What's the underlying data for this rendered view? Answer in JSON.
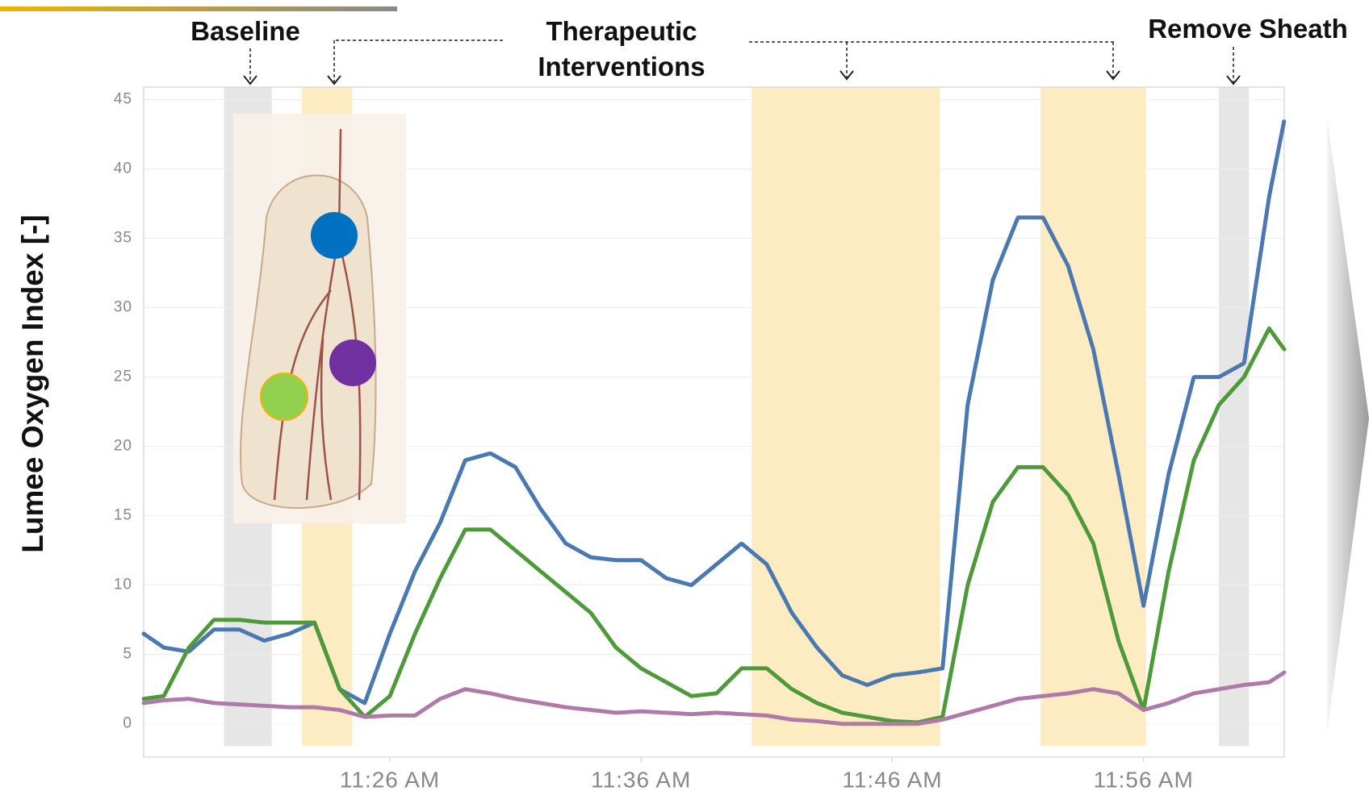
{
  "chart_data": {
    "type": "line",
    "ylabel": "Lumee Oxygen Index [-]",
    "annotations": [
      "Baseline",
      "Therapeutic Interventions",
      "Remove Sheath"
    ],
    "x": [
      676.2,
      677,
      678,
      679,
      680,
      681,
      682,
      683,
      684,
      685,
      686,
      687,
      688,
      689,
      690,
      691,
      692,
      693,
      694,
      695,
      696,
      697,
      698,
      699,
      700,
      701,
      702,
      703,
      704,
      705,
      706,
      707,
      708,
      709,
      710,
      711,
      712,
      713,
      714,
      715,
      716,
      717,
      718,
      719,
      720,
      721,
      721.6
    ],
    "series": [
      {
        "color": "#4a78b0",
        "values": [
          6.5,
          5.5,
          5.2,
          6.8,
          6.8,
          6.0,
          6.5,
          7.3,
          2.5,
          1.5,
          6.5,
          11,
          14.5,
          19,
          19.5,
          18.5,
          15.5,
          13,
          12,
          11.8,
          11.8,
          10.5,
          10,
          11.5,
          13,
          11.5,
          8,
          5.5,
          3.5,
          2.8,
          3.5,
          3.7,
          4,
          23,
          32,
          36.5,
          36.5,
          33,
          27,
          18,
          8.5,
          18,
          25,
          25,
          26,
          38,
          43.5
        ]
      },
      {
        "color": "#4e9a3a",
        "values": [
          1.8,
          2,
          5.5,
          7.5,
          7.5,
          7.3,
          7.3,
          7.3,
          2.5,
          0.5,
          2,
          6.5,
          10.5,
          14,
          14,
          12.5,
          11,
          9.5,
          8,
          5.5,
          4,
          3,
          2,
          2.2,
          4,
          4,
          2.5,
          1.5,
          0.8,
          0.5,
          0.2,
          0.1,
          0.5,
          10,
          16,
          18.5,
          18.5,
          16.5,
          13,
          6,
          1,
          11,
          19,
          23,
          25,
          28.5,
          27
        ]
      },
      {
        "color": "#b07aa8",
        "values": [
          1.5,
          1.7,
          1.8,
          1.5,
          1.4,
          1.3,
          1.2,
          1.2,
          1,
          0.5,
          0.6,
          0.6,
          1.8,
          2.5,
          2.2,
          1.8,
          1.5,
          1.2,
          1,
          0.8,
          0.9,
          0.8,
          0.7,
          0.8,
          0.7,
          0.6,
          0.3,
          0.2,
          0,
          0,
          0,
          0,
          0.3,
          0.8,
          1.3,
          1.8,
          2,
          2.2,
          2.5,
          2.2,
          1,
          1.5,
          2.2,
          2.5,
          2.8,
          3,
          3.7
        ]
      }
    ],
    "bands": [
      {
        "x": [
          679.4,
          681.3
        ],
        "color": "#e6e6e6"
      },
      {
        "x": [
          682.5,
          684.5
        ],
        "color": "#fdecc2"
      },
      {
        "x": [
          700.4,
          707.9
        ],
        "color": "#fdecc2"
      },
      {
        "x": [
          711.9,
          716.1
        ],
        "color": "#fdecc2"
      },
      {
        "x": [
          719.0,
          720.2
        ],
        "color": "#e6e6e6"
      }
    ],
    "xlim": [
      676.2,
      721.6
    ],
    "xticks": [
      {
        "value": 686,
        "label": "11:26 AM"
      },
      {
        "value": 696,
        "label": "11:36 AM"
      },
      {
        "value": 706,
        "label": "11:46 AM"
      },
      {
        "value": 716,
        "label": "11:56 AM"
      }
    ],
    "ylim": [
      -2.4,
      45.9
    ],
    "yticks": [
      0,
      5,
      10,
      15,
      20,
      25,
      30,
      35,
      40,
      45
    ],
    "grid": true
  }
}
